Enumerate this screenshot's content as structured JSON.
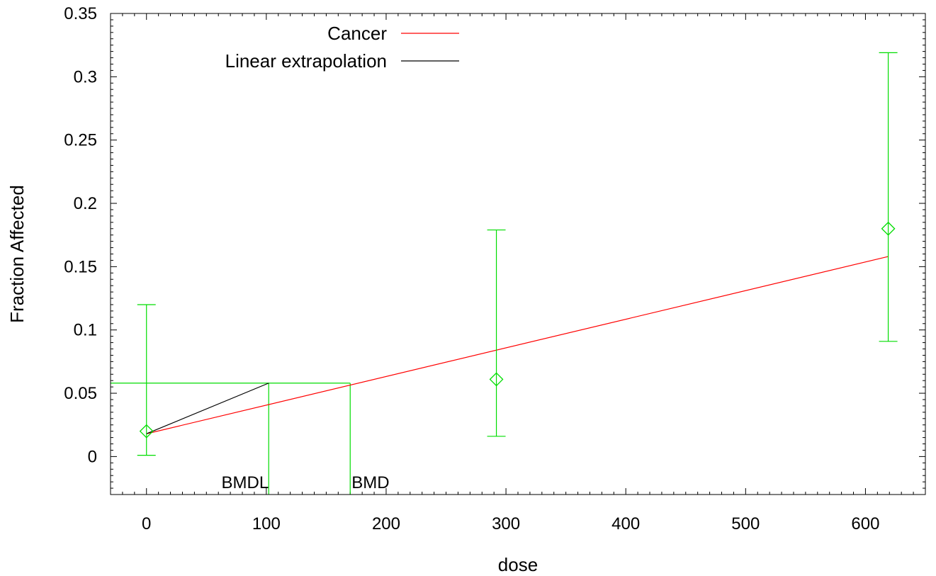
{
  "chart_data": {
    "type": "line",
    "title": "",
    "xlabel": "dose",
    "ylabel": "Fraction Affected",
    "xlim": [
      -30,
      650
    ],
    "ylim": [
      -0.03,
      0.35
    ],
    "xticks": [
      0,
      100,
      200,
      300,
      400,
      500,
      600
    ],
    "yticks": [
      0,
      0.05,
      0.1,
      0.15,
      0.2,
      0.25,
      0.3,
      0.35
    ],
    "xtick_labels": [
      "0",
      "100",
      "200",
      "300",
      "400",
      "500",
      "600"
    ],
    "ytick_labels": [
      "0",
      "0.05",
      "0.1",
      "0.15",
      "0.2",
      "0.25",
      "0.3",
      "0.35"
    ],
    "legend": {
      "placement": "top-center",
      "entries": [
        "Cancer",
        "Linear extrapolation"
      ]
    },
    "series": [
      {
        "name": "Cancer",
        "kind": "line",
        "color": "#ff0000",
        "x": [
          0,
          619
        ],
        "y": [
          0.018,
          0.158
        ]
      },
      {
        "name": "Linear extrapolation",
        "kind": "line",
        "color": "#000000",
        "x": [
          0,
          102
        ],
        "y": [
          0.018,
          0.058
        ]
      }
    ],
    "observed": {
      "color": "#00dd00",
      "marker": "diamond",
      "points": [
        {
          "x": 0,
          "y": 0.02,
          "lower": 0.001,
          "upper": 0.12
        },
        {
          "x": 292,
          "y": 0.061,
          "lower": 0.016,
          "upper": 0.179
        },
        {
          "x": 619,
          "y": 0.18,
          "lower": 0.091,
          "upper": 0.319
        }
      ]
    },
    "bmr_level": 0.058,
    "bmdl": {
      "label": "BMDL",
      "x": 102
    },
    "bmd": {
      "label": "BMD",
      "x": 170
    },
    "grid": false
  }
}
